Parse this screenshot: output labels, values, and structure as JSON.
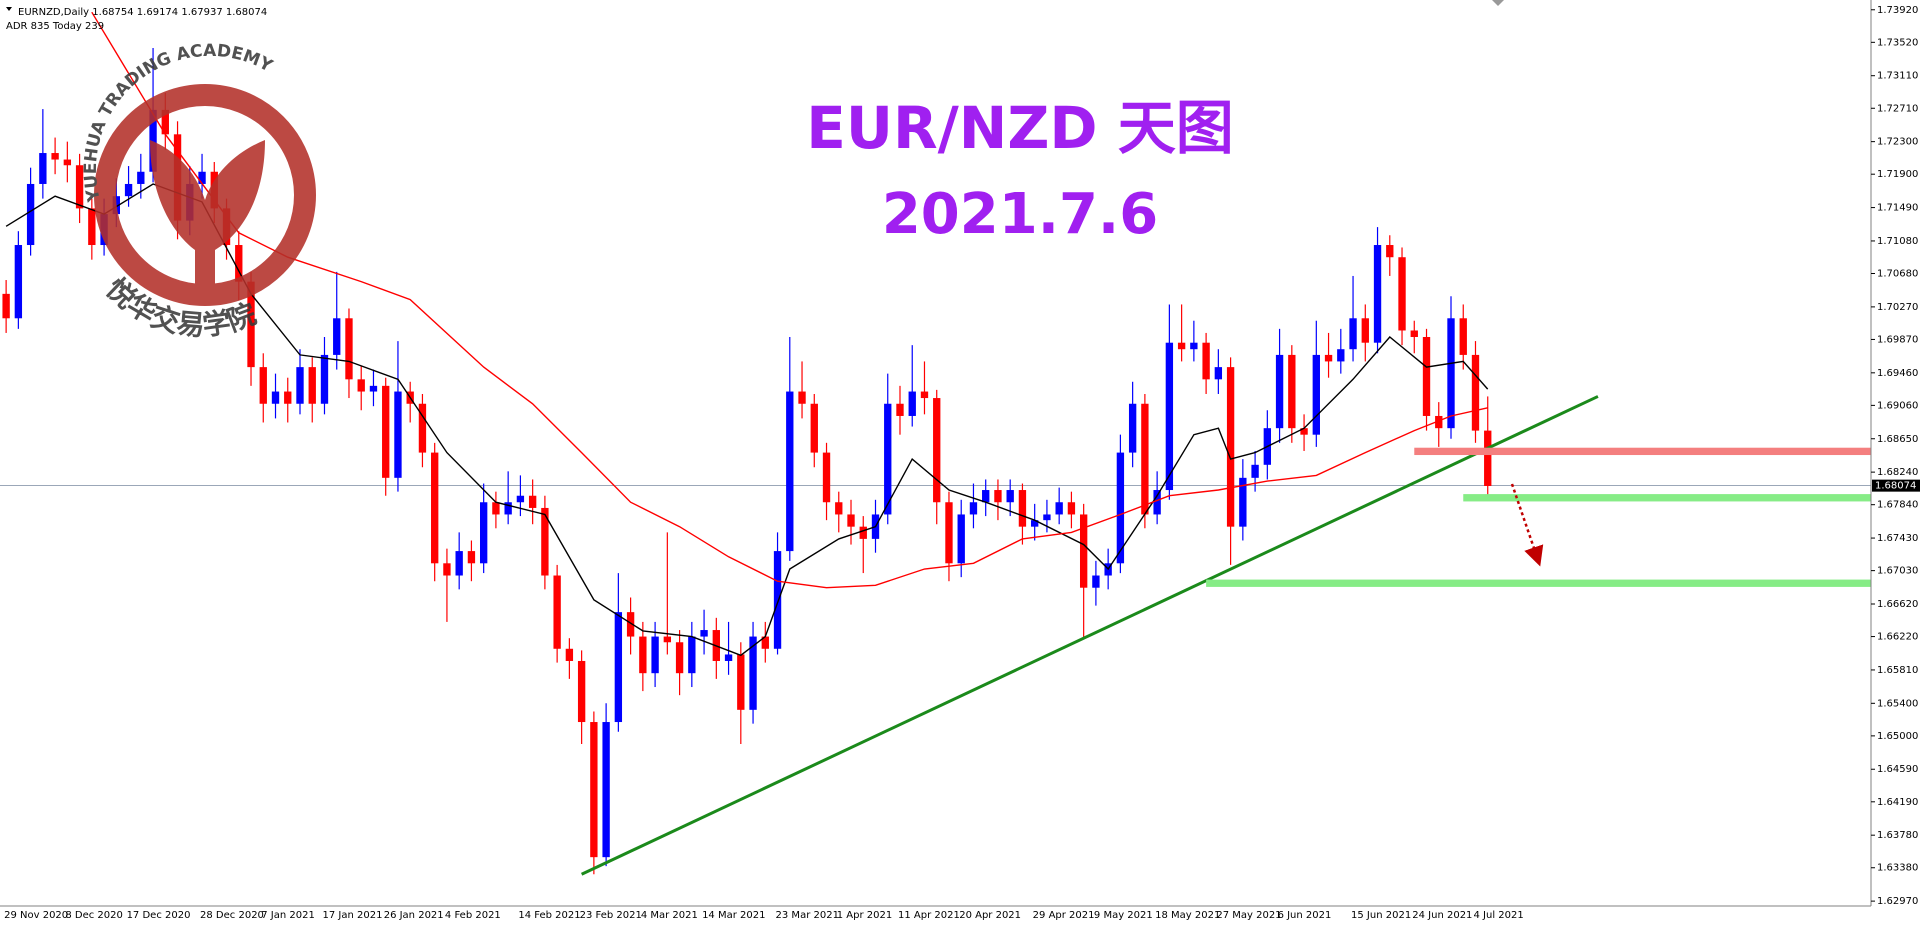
{
  "header": "EURNZD,Daily  1.68754 1.69174 1.67937 1.68074",
  "subheader": "ADR 835  Today 239",
  "watermark": {
    "top": "YUEHUA TRADING ACADEMY",
    "bottom": "悦华交易学院"
  },
  "chart_data": {
    "type": "candlestick",
    "title": "EUR/NZD 天图",
    "subtitle": "2021.7.6",
    "up_color": "#0000ff",
    "down_color": "#ff0000",
    "xlim": [
      -0.5,
      152.3
    ],
    "ylim": [
      1.6291,
      1.7404
    ],
    "yticks": [
      {
        "value": 1.7392,
        "label": "1.73920"
      },
      {
        "value": 1.7352,
        "label": "1.73520"
      },
      {
        "value": 1.7311,
        "label": "1.73110"
      },
      {
        "value": 1.7271,
        "label": "1.72710"
      },
      {
        "value": 1.723,
        "label": "1.72300"
      },
      {
        "value": 1.719,
        "label": "1.71900"
      },
      {
        "value": 1.7149,
        "label": "1.71490"
      },
      {
        "value": 1.7108,
        "label": "1.71080"
      },
      {
        "value": 1.7068,
        "label": "1.70680"
      },
      {
        "value": 1.7027,
        "label": "1.70270"
      },
      {
        "value": 1.6987,
        "label": "1.69870"
      },
      {
        "value": 1.6946,
        "label": "1.69460"
      },
      {
        "value": 1.6906,
        "label": "1.69060"
      },
      {
        "value": 1.6865,
        "label": "1.68650"
      },
      {
        "value": 1.6824,
        "label": "1.68240"
      },
      {
        "value": 1.6784,
        "label": "1.67840"
      },
      {
        "value": 1.6743,
        "label": "1.67430"
      },
      {
        "value": 1.6703,
        "label": "1.67030"
      },
      {
        "value": 1.6662,
        "label": "1.66620"
      },
      {
        "value": 1.6622,
        "label": "1.66220"
      },
      {
        "value": 1.6581,
        "label": "1.65810"
      },
      {
        "value": 1.654,
        "label": "1.65400"
      },
      {
        "value": 1.65,
        "label": "1.65000"
      },
      {
        "value": 1.6459,
        "label": "1.64590"
      },
      {
        "value": 1.6419,
        "label": "1.64190"
      },
      {
        "value": 1.6378,
        "label": "1.63780"
      },
      {
        "value": 1.6338,
        "label": "1.63380"
      },
      {
        "value": 1.6297,
        "label": "1.62970"
      }
    ],
    "categories": [
      "29 Nov 2020",
      null,
      null,
      null,
      null,
      "8 Dec 2020",
      null,
      null,
      null,
      null,
      "17 Dec 2020",
      null,
      null,
      null,
      null,
      null,
      "28 Dec 2020",
      null,
      null,
      null,
      null,
      "7 Jan 2021",
      null,
      null,
      null,
      null,
      "17 Jan 2021",
      null,
      null,
      null,
      null,
      "26 Jan 2021",
      null,
      null,
      null,
      null,
      "4 Feb 2021",
      null,
      null,
      null,
      null,
      null,
      "14 Feb 2021",
      null,
      null,
      null,
      null,
      "23 Feb 2021",
      null,
      null,
      null,
      null,
      "4 Mar 2021",
      null,
      null,
      null,
      null,
      "14 Mar 2021",
      null,
      null,
      null,
      null,
      null,
      "23 Mar 2021",
      null,
      null,
      null,
      null,
      "1 Apr 2021",
      null,
      null,
      null,
      null,
      "11 Apr 2021",
      null,
      null,
      null,
      null,
      "20 Apr 2021",
      null,
      null,
      null,
      null,
      null,
      "29 Apr 2021",
      null,
      null,
      null,
      null,
      "9 May 2021",
      null,
      null,
      null,
      null,
      "18 May 2021",
      null,
      null,
      null,
      null,
      "27 May 2021",
      null,
      null,
      null,
      null,
      "6 Jun 2021",
      null,
      null,
      null,
      null,
      null,
      "15 Jun 2021",
      null,
      null,
      null,
      null,
      "24 Jun 2021",
      null,
      null,
      null,
      null,
      "4 Jul 2021",
      null
    ],
    "candles": [
      [
        1.7043,
        1.706,
        1.6995,
        1.7013
      ],
      [
        1.7013,
        1.712,
        1.7,
        1.7103
      ],
      [
        1.7103,
        1.7198,
        1.709,
        1.7178
      ],
      [
        1.7178,
        1.727,
        1.716,
        1.7216
      ],
      [
        1.7216,
        1.7235,
        1.719,
        1.7208
      ],
      [
        1.7208,
        1.723,
        1.718,
        1.7201
      ],
      [
        1.7201,
        1.7215,
        1.713,
        1.7148
      ],
      [
        1.7148,
        1.716,
        1.7085,
        1.7103
      ],
      [
        1.7103,
        1.716,
        1.709,
        1.7141
      ],
      [
        1.7141,
        1.7185,
        1.7125,
        1.7163
      ],
      [
        1.7163,
        1.72,
        1.715,
        1.7178
      ],
      [
        1.7178,
        1.7215,
        1.716,
        1.7193
      ],
      [
        1.7193,
        1.7345,
        1.718,
        1.7269
      ],
      [
        1.7269,
        1.729,
        1.722,
        1.7239
      ],
      [
        1.7239,
        1.7255,
        1.711,
        1.7133
      ],
      [
        1.7133,
        1.72,
        1.7115,
        1.7178
      ],
      [
        1.7178,
        1.7215,
        1.716,
        1.7193
      ],
      [
        1.7193,
        1.7205,
        1.713,
        1.7148
      ],
      [
        1.7148,
        1.716,
        1.7085,
        1.7103
      ],
      [
        1.7103,
        1.712,
        1.7035,
        1.7058
      ],
      [
        1.7058,
        1.707,
        1.693,
        1.6953
      ],
      [
        1.6953,
        1.697,
        1.6885,
        1.6908
      ],
      [
        1.6908,
        1.6945,
        1.689,
        1.6923
      ],
      [
        1.6923,
        1.694,
        1.6885,
        1.6908
      ],
      [
        1.6908,
        1.6975,
        1.6895,
        1.6953
      ],
      [
        1.6953,
        1.6965,
        1.6885,
        1.6908
      ],
      [
        1.6908,
        1.699,
        1.6895,
        1.6968
      ],
      [
        1.6968,
        1.707,
        1.695,
        1.7013
      ],
      [
        1.7013,
        1.7025,
        1.6915,
        1.6938
      ],
      [
        1.6938,
        1.6955,
        1.69,
        1.6923
      ],
      [
        1.6923,
        1.695,
        1.6905,
        1.693
      ],
      [
        1.693,
        1.694,
        1.6795,
        1.6817
      ],
      [
        1.6817,
        1.6985,
        1.68,
        1.6923
      ],
      [
        1.6923,
        1.6935,
        1.6885,
        1.6908
      ],
      [
        1.6908,
        1.692,
        1.683,
        1.6848
      ],
      [
        1.6848,
        1.686,
        1.669,
        1.6712
      ],
      [
        1.6712,
        1.673,
        1.664,
        1.6697
      ],
      [
        1.6697,
        1.675,
        1.668,
        1.6727
      ],
      [
        1.6727,
        1.674,
        1.669,
        1.6712
      ],
      [
        1.6712,
        1.681,
        1.67,
        1.6787
      ],
      [
        1.6787,
        1.68,
        1.6755,
        1.6772
      ],
      [
        1.6772,
        1.6825,
        1.676,
        1.6787
      ],
      [
        1.6787,
        1.682,
        1.677,
        1.6795
      ],
      [
        1.6795,
        1.6815,
        1.676,
        1.678
      ],
      [
        1.678,
        1.6795,
        1.668,
        1.6697
      ],
      [
        1.6697,
        1.671,
        1.659,
        1.6607
      ],
      [
        1.6607,
        1.662,
        1.657,
        1.6592
      ],
      [
        1.6592,
        1.6605,
        1.649,
        1.6517
      ],
      [
        1.6517,
        1.653,
        1.633,
        1.6351
      ],
      [
        1.6351,
        1.654,
        1.634,
        1.6517
      ],
      [
        1.6517,
        1.67,
        1.6505,
        1.6652
      ],
      [
        1.6652,
        1.667,
        1.66,
        1.6622
      ],
      [
        1.6622,
        1.664,
        1.6555,
        1.6577
      ],
      [
        1.6577,
        1.664,
        1.656,
        1.6622
      ],
      [
        1.6622,
        1.675,
        1.66,
        1.6615
      ],
      [
        1.6615,
        1.663,
        1.655,
        1.6577
      ],
      [
        1.6577,
        1.664,
        1.656,
        1.6622
      ],
      [
        1.6622,
        1.6655,
        1.66,
        1.663
      ],
      [
        1.663,
        1.6645,
        1.657,
        1.6592
      ],
      [
        1.6592,
        1.664,
        1.6575,
        1.66
      ],
      [
        1.66,
        1.6615,
        1.649,
        1.6532
      ],
      [
        1.6532,
        1.664,
        1.6515,
        1.6622
      ],
      [
        1.6622,
        1.664,
        1.659,
        1.6607
      ],
      [
        1.6607,
        1.675,
        1.66,
        1.6727
      ],
      [
        1.6727,
        1.699,
        1.6715,
        1.6923
      ],
      [
        1.6923,
        1.696,
        1.689,
        1.6908
      ],
      [
        1.6908,
        1.692,
        1.683,
        1.6848
      ],
      [
        1.6848,
        1.686,
        1.6765,
        1.6787
      ],
      [
        1.6787,
        1.68,
        1.675,
        1.6772
      ],
      [
        1.6772,
        1.679,
        1.6735,
        1.6757
      ],
      [
        1.6757,
        1.677,
        1.67,
        1.6742
      ],
      [
        1.6742,
        1.679,
        1.6725,
        1.6772
      ],
      [
        1.6772,
        1.6945,
        1.676,
        1.6908
      ],
      [
        1.6908,
        1.693,
        1.687,
        1.6893
      ],
      [
        1.6893,
        1.698,
        1.688,
        1.6923
      ],
      [
        1.6923,
        1.696,
        1.6895,
        1.6915
      ],
      [
        1.6915,
        1.6925,
        1.676,
        1.6787
      ],
      [
        1.6787,
        1.68,
        1.669,
        1.6712
      ],
      [
        1.6712,
        1.679,
        1.6695,
        1.6772
      ],
      [
        1.6772,
        1.681,
        1.6755,
        1.6787
      ],
      [
        1.6787,
        1.6815,
        1.677,
        1.6802
      ],
      [
        1.6802,
        1.6815,
        1.6765,
        1.6787
      ],
      [
        1.6787,
        1.6815,
        1.677,
        1.6802
      ],
      [
        1.6802,
        1.681,
        1.6735,
        1.6757
      ],
      [
        1.6757,
        1.6785,
        1.674,
        1.6765
      ],
      [
        1.6765,
        1.679,
        1.675,
        1.6772
      ],
      [
        1.6772,
        1.6805,
        1.676,
        1.6787
      ],
      [
        1.6787,
        1.68,
        1.6755,
        1.6772
      ],
      [
        1.6772,
        1.6785,
        1.662,
        1.6682
      ],
      [
        1.6682,
        1.6715,
        1.666,
        1.6697
      ],
      [
        1.6697,
        1.673,
        1.668,
        1.6712
      ],
      [
        1.6712,
        1.687,
        1.67,
        1.6848
      ],
      [
        1.6848,
        1.6935,
        1.683,
        1.6908
      ],
      [
        1.6908,
        1.692,
        1.6755,
        1.6772
      ],
      [
        1.6772,
        1.6825,
        1.676,
        1.6802
      ],
      [
        1.6802,
        1.703,
        1.679,
        1.6983
      ],
      [
        1.6983,
        1.703,
        1.696,
        1.6975
      ],
      [
        1.6975,
        1.701,
        1.696,
        1.6983
      ],
      [
        1.6983,
        1.6995,
        1.692,
        1.6938
      ],
      [
        1.6938,
        1.6975,
        1.692,
        1.6953
      ],
      [
        1.6953,
        1.6965,
        1.671,
        1.6757
      ],
      [
        1.6757,
        1.684,
        1.674,
        1.6817
      ],
      [
        1.6817,
        1.685,
        1.68,
        1.6833
      ],
      [
        1.6833,
        1.69,
        1.6815,
        1.6878
      ],
      [
        1.6878,
        1.7,
        1.686,
        1.6968
      ],
      [
        1.6968,
        1.698,
        1.686,
        1.6878
      ],
      [
        1.6878,
        1.6895,
        1.685,
        1.687
      ],
      [
        1.687,
        1.701,
        1.6855,
        1.6968
      ],
      [
        1.6968,
        1.6995,
        1.694,
        1.696
      ],
      [
        1.696,
        1.7,
        1.6945,
        1.6975
      ],
      [
        1.6975,
        1.7065,
        1.696,
        1.7013
      ],
      [
        1.7013,
        1.703,
        1.696,
        1.6983
      ],
      [
        1.6983,
        1.7125,
        1.697,
        1.7103
      ],
      [
        1.7103,
        1.7115,
        1.7065,
        1.7088
      ],
      [
        1.7088,
        1.71,
        1.698,
        1.6998
      ],
      [
        1.6998,
        1.701,
        1.697,
        1.699
      ],
      [
        1.699,
        1.7,
        1.6875,
        1.6893
      ],
      [
        1.6893,
        1.691,
        1.6855,
        1.6878
      ],
      [
        1.6878,
        1.704,
        1.6865,
        1.7013
      ],
      [
        1.7013,
        1.703,
        1.695,
        1.6968
      ],
      [
        1.6968,
        1.6985,
        1.686,
        1.6875
      ],
      [
        1.6875,
        1.6917,
        1.6794,
        1.6807
      ]
    ],
    "lines": [
      {
        "color": "#000000",
        "x": [
          0,
          4,
          8,
          12,
          16,
          20,
          24,
          28,
          32,
          36,
          40,
          44,
          48,
          52,
          56,
          60,
          62,
          64,
          68,
          71,
          74,
          77,
          80,
          84,
          88,
          90,
          94,
          97,
          99,
          100,
          102,
          106,
          110,
          113,
          116,
          119,
          121
        ],
        "values": [
          1.7126,
          1.7163,
          1.7141,
          1.7178,
          1.7156,
          1.7043,
          1.6968,
          1.696,
          1.6938,
          1.6848,
          1.6787,
          1.6772,
          1.6667,
          1.6629,
          1.6622,
          1.6599,
          1.6622,
          1.6705,
          1.6742,
          1.6757,
          1.684,
          1.6802,
          1.6787,
          1.6765,
          1.6735,
          1.6705,
          1.6795,
          1.687,
          1.6878,
          1.684,
          1.6848,
          1.6878,
          1.6938,
          1.699,
          1.6953,
          1.696,
          1.6926
        ]
      },
      {
        "color": "#ff0000",
        "x": [
          7,
          13,
          19,
          23,
          29,
          33,
          39,
          43,
          47,
          51,
          55,
          59,
          63,
          67,
          71,
          75,
          79,
          83,
          87,
          91,
          95,
          99,
          103,
          107,
          111,
          115,
          118,
          121
        ],
        "values": [
          1.7389,
          1.7239,
          1.7118,
          1.7088,
          1.7058,
          1.7036,
          1.6953,
          1.6908,
          1.6848,
          1.6787,
          1.6757,
          1.672,
          1.669,
          1.6682,
          1.6685,
          1.6705,
          1.6712,
          1.6742,
          1.675,
          1.6772,
          1.6795,
          1.6802,
          1.6813,
          1.682,
          1.6848,
          1.6875,
          1.6893,
          1.6903
        ]
      }
    ],
    "trendline": {
      "color": "#1b8a1b",
      "x": [
        47,
        130
      ],
      "values": [
        1.633,
        1.6917
      ]
    },
    "zones": [
      {
        "color": "#f47f7f",
        "x_start": 115,
        "ylim": [
          1.6845,
          1.6854
        ]
      },
      {
        "color": "#86ec86",
        "x_start": 119,
        "ylim": [
          1.6788,
          1.6797
        ]
      },
      {
        "color": "#86ec86",
        "x_start": 98,
        "ylim": [
          1.6683,
          1.6692
        ]
      }
    ],
    "current_price": {
      "value": 1.68074,
      "label": "1.68074"
    }
  }
}
